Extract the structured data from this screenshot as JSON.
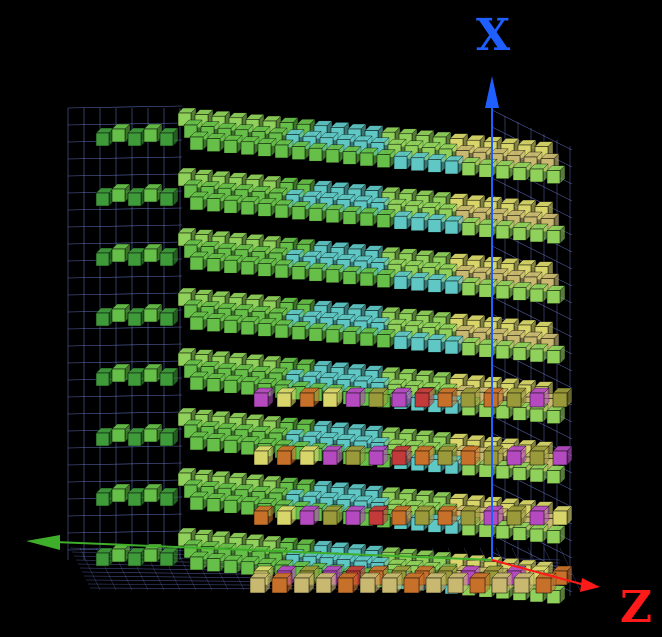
{
  "axes": {
    "x_label": "X",
    "z_label": "Z",
    "x_color": "#1f5fff",
    "z_color": "#ff1a1a",
    "y_color": "#3fae2a",
    "grid_color": "#6e7fd6"
  },
  "voxel_grid": {
    "layers": 8,
    "columns": 18,
    "palette": {
      "dark_green": "#3f9a3a",
      "green": "#66bf48",
      "light_green": "#8fd15a",
      "cyan": "#5fc7c4",
      "yellow": "#d8d66a",
      "tan": "#c8b870",
      "orange": "#c7702a",
      "magenta": "#b54ac0",
      "red": "#c23a3a",
      "olive": "#9a9a3a"
    }
  }
}
